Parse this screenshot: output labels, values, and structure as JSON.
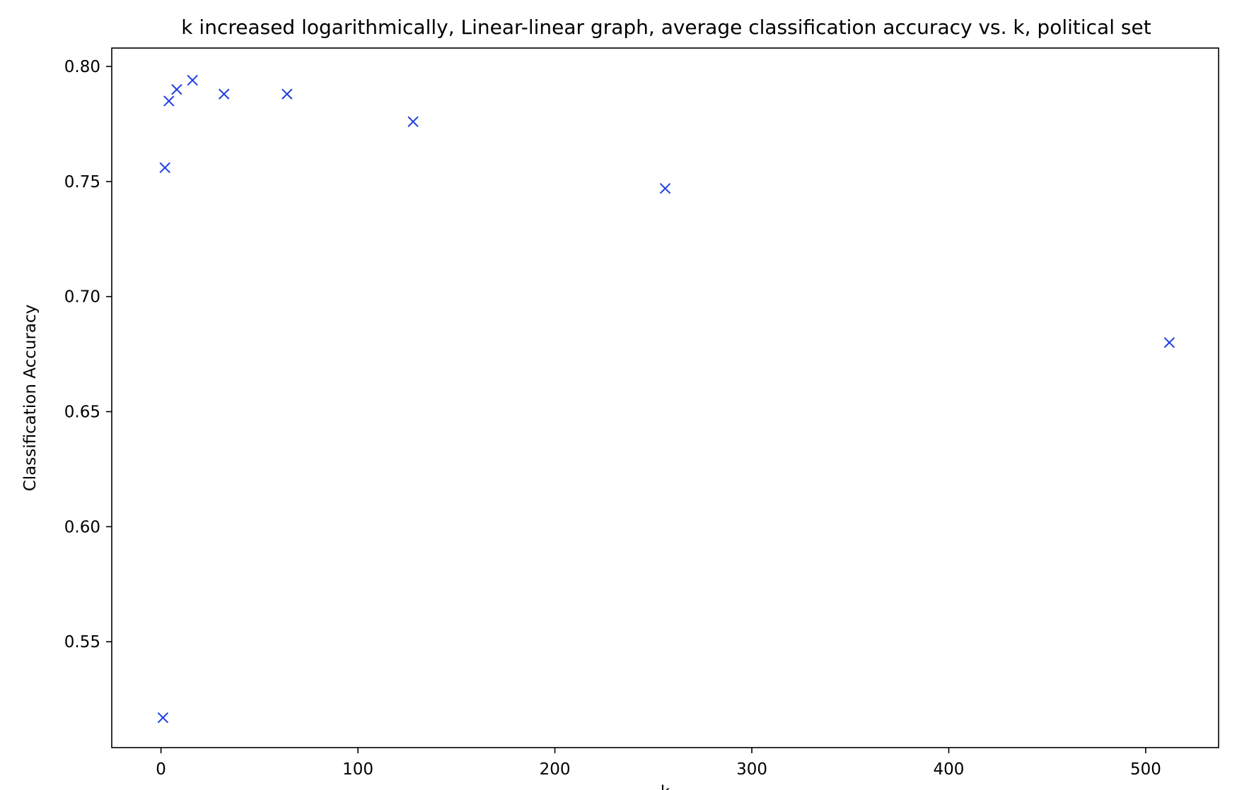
{
  "chart_data": {
    "type": "scatter",
    "title": "k increased logarithmically, Linear-linear graph, average classification accuracy vs. k, political set",
    "xlabel": "k",
    "ylabel": "Classification Accuracy",
    "xlim": [
      -25,
      537
    ],
    "ylim": [
      0.504,
      0.808
    ],
    "xticks": [
      0,
      100,
      200,
      300,
      400,
      500
    ],
    "yticks": [
      0.55,
      0.6,
      0.65,
      0.7,
      0.75,
      0.8
    ],
    "ytick_labels": [
      "0.55",
      "0.60",
      "0.65",
      "0.70",
      "0.75",
      "0.80"
    ],
    "grid": false,
    "legend": "none",
    "marker": "x",
    "marker_color": "#1f3fe0",
    "series": [
      {
        "x": [
          1,
          2,
          4,
          8,
          16,
          32,
          64,
          128,
          256,
          512
        ],
        "y": [
          0.517,
          0.756,
          0.785,
          0.79,
          0.794,
          0.788,
          0.788,
          0.776,
          0.747,
          0.68
        ]
      }
    ]
  }
}
